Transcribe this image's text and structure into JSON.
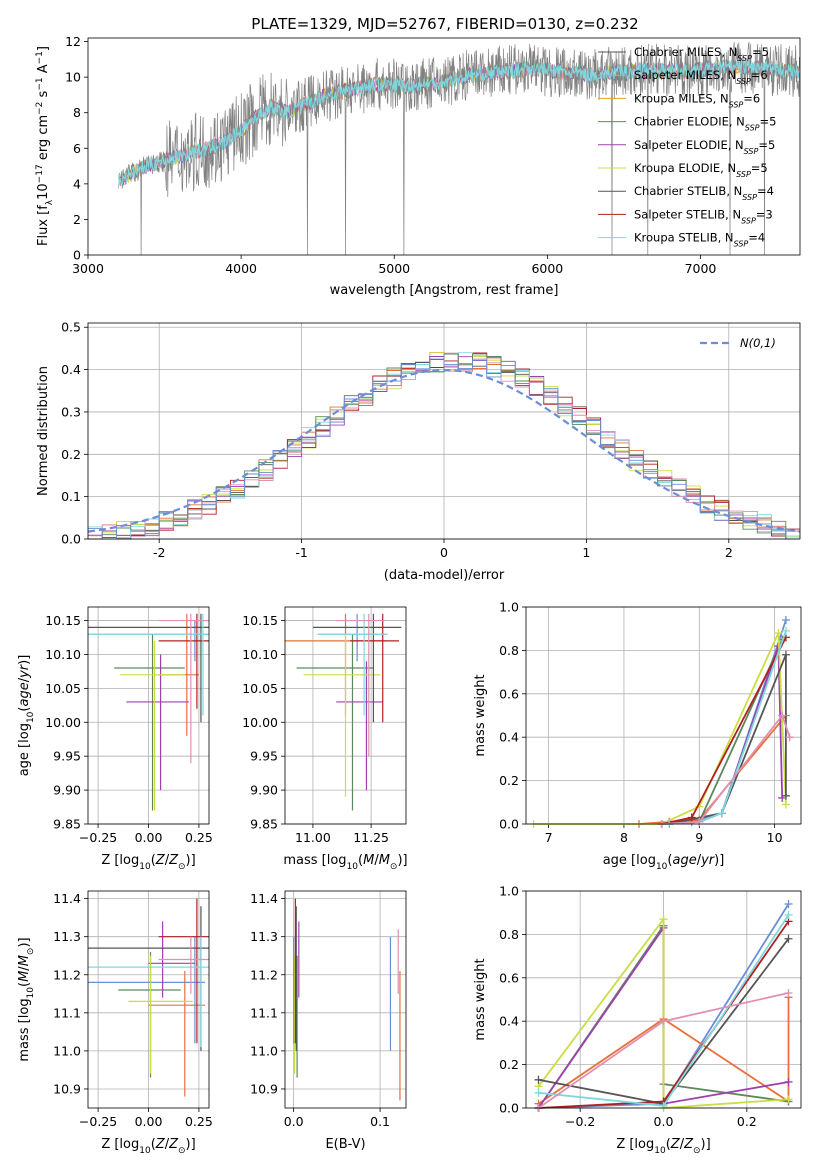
{
  "figure_title": "PLATE=1329, MJD=52767, FIBERID=0130, z=0.232",
  "colors": [
    "#6a8fd8",
    "#e8703a",
    "#5a8a5a",
    "#a040b0",
    "#ccdd44",
    "#555555",
    "#b02020",
    "#7fd8e0",
    "#e090b0",
    "#ffcc66"
  ],
  "series_names": [
    "Chabrier MILES, N_SSP=5",
    "Salpeter MILES, N_SSP=6",
    "Kroupa MILES, N_SSP=6",
    "Chabrier ELODIE, N_SSP=5",
    "Salpeter ELODIE, N_SSP=5",
    "Kroupa ELODIE, N_SSP=5",
    "Chabrier STELIB, N_SSP=4",
    "Salpeter STELIB, N_SSP=3",
    "Kroupa STELIB, N_SSP=4"
  ],
  "chart_data": [
    {
      "id": "spectrum",
      "type": "line",
      "title": "PLATE=1329, MJD=52767, FIBERID=0130, z=0.232",
      "xlabel": "wavelength [Angstrom, rest frame]",
      "ylabel": "Flux [f_λ 10^-17 erg cm^-2 s^-1 A^-1]",
      "xlim": [
        3000,
        7650
      ],
      "ylim": [
        0,
        12.2
      ],
      "xticks": [
        3000,
        4000,
        5000,
        6000,
        7000
      ],
      "yticks": [
        0,
        2,
        4,
        6,
        8,
        10,
        12
      ],
      "grid": false,
      "legend": "top-right",
      "legend_labels": [
        {
          "name": "Chabrier MILES, N",
          "sub": "SSP",
          "tail": "=5",
          "color": "#555555"
        },
        {
          "name": "Salpeter MILES, N",
          "sub": "SSP",
          "tail": "=6",
          "color": "#e090b0"
        },
        {
          "name": "Kroupa MILES, N",
          "sub": "SSP",
          "tail": "=6",
          "color": "#e8a030"
        },
        {
          "name": "Chabrier ELODIE, N",
          "sub": "SSP",
          "tail": "=5",
          "color": "#5a8a5a"
        },
        {
          "name": "Salpeter ELODIE, N",
          "sub": "SSP",
          "tail": "=5",
          "color": "#a040b0"
        },
        {
          "name": "Kroupa ELODIE, N",
          "sub": "SSP",
          "tail": "=5",
          "color": "#ccdd44"
        },
        {
          "name": "Chabrier STELIB, N",
          "sub": "SSP",
          "tail": "=4",
          "color": "#555555"
        },
        {
          "name": "Salpeter STELIB, N",
          "sub": "SSP",
          "tail": "=3",
          "color": "#b02020"
        },
        {
          "name": "Kroupa STELIB, N",
          "sub": "SSP",
          "tail": "=4",
          "color": "#7fd8e0"
        }
      ],
      "data_curve": {
        "x": [
          3200,
          3400,
          3500,
          3700,
          3800,
          3900,
          4000,
          4100,
          4200,
          4300,
          4500,
          4700,
          4900,
          5100,
          5300,
          5500,
          5700,
          5900,
          6100,
          6300,
          6500,
          6700,
          6900,
          7100,
          7300,
          7500,
          7650
        ],
        "y": [
          4.2,
          5.1,
          5.3,
          5.8,
          6.0,
          6.4,
          7.0,
          7.8,
          8.3,
          8.0,
          8.8,
          9.3,
          9.6,
          9.5,
          9.7,
          10.1,
          10.3,
          10.5,
          10.3,
          10.1,
          10.3,
          10.4,
          10.3,
          10.5,
          10.6,
          10.4,
          10.3
        ]
      }
    },
    {
      "id": "residuals",
      "type": "histogram",
      "xlabel": "(data-model)/error",
      "ylabel": "Normed distribution",
      "xlim": [
        -2.5,
        2.5
      ],
      "ylim": [
        0,
        0.51
      ],
      "xticks": [
        -2,
        -1,
        0,
        1,
        2
      ],
      "yticks": [
        0.0,
        0.1,
        0.2,
        0.3,
        0.4,
        0.5
      ],
      "ytick_labels": [
        "0.0",
        "0.1",
        "0.2",
        "0.3",
        "0.4",
        "0.5"
      ],
      "grid": true,
      "legend": "top-right",
      "legend_label": "N(0,1)",
      "bin_width": 0.1
    },
    {
      "id": "age-vs-Z",
      "type": "errorbar",
      "xlabel": "Z [log10(Z/Z⊙)]",
      "ylabel": "age [log10(age/yr)]",
      "xlim": [
        -0.3,
        0.3
      ],
      "ylim": [
        9.85,
        10.17
      ],
      "xticks": [
        -0.25,
        0.0,
        0.25
      ],
      "xtick_labels": [
        "−0.25",
        "0.00",
        "0.25"
      ],
      "yticks": [
        9.85,
        9.9,
        9.95,
        10.0,
        10.05,
        10.1,
        10.15
      ],
      "ytick_labels": [
        "9.85",
        "9.90",
        "9.95",
        "10.00",
        "10.05",
        "10.10",
        "10.15"
      ],
      "points": [
        {
          "x": 0.23,
          "xlo": -0.3,
          "xhi": 0.3,
          "y": 10.13,
          "ylo": 10.09,
          "yhi": 10.15,
          "c": "#6a8fd8"
        },
        {
          "x": 0.19,
          "xlo": 0.05,
          "xhi": 0.25,
          "y": 10.07,
          "ylo": 9.98,
          "yhi": 10.16,
          "c": "#e8703a"
        },
        {
          "x": 0.02,
          "xlo": -0.17,
          "xhi": 0.18,
          "y": 10.08,
          "ylo": 9.87,
          "yhi": 10.13,
          "c": "#5a8a5a"
        },
        {
          "x": 0.06,
          "xlo": -0.11,
          "xhi": 0.2,
          "y": 10.03,
          "ylo": 9.9,
          "yhi": 10.1,
          "c": "#a040b0"
        },
        {
          "x": 0.03,
          "xlo": -0.14,
          "xhi": 0.18,
          "y": 10.07,
          "ylo": 9.87,
          "yhi": 10.12,
          "c": "#ccdd44"
        },
        {
          "x": 0.26,
          "xlo": -0.3,
          "xhi": 0.3,
          "y": 10.14,
          "ylo": 10.0,
          "yhi": 10.16,
          "c": "#555555"
        },
        {
          "x": 0.24,
          "xlo": 0.05,
          "xhi": 0.3,
          "y": 10.12,
          "ylo": 10.02,
          "yhi": 10.16,
          "c": "#b02020"
        },
        {
          "x": 0.27,
          "xlo": -0.3,
          "xhi": 0.3,
          "y": 10.13,
          "ylo": 10.01,
          "yhi": 10.16,
          "c": "#7fd8e0"
        },
        {
          "x": 0.21,
          "xlo": 0.05,
          "xhi": 0.3,
          "y": 10.15,
          "ylo": 9.94,
          "yhi": 10.16,
          "c": "#e090b0"
        }
      ]
    },
    {
      "id": "age-vs-mass",
      "type": "errorbar",
      "xlabel": "mass [log10(M/M⊙)]",
      "ylabel": "",
      "xlim": [
        10.88,
        11.4
      ],
      "ylim": [
        9.85,
        10.17
      ],
      "xticks": [
        11.0,
        11.25
      ],
      "xtick_labels": [
        "11.00",
        "11.25"
      ],
      "yticks": [
        9.85,
        9.9,
        9.95,
        10.0,
        10.05,
        10.1,
        10.15
      ],
      "ytick_labels": [
        "9.85",
        "9.90",
        "9.95",
        "10.00",
        "10.05",
        "10.10",
        "10.15"
      ],
      "points": [
        {
          "x": 11.19,
          "xlo": 11.02,
          "xhi": 11.32,
          "y": 10.13,
          "ylo": 10.09,
          "yhi": 10.16,
          "c": "#6a8fd8"
        },
        {
          "x": 11.14,
          "xlo": 10.88,
          "xhi": 11.31,
          "y": 10.12,
          "ylo": 10.01,
          "yhi": 10.16,
          "c": "#e8703a"
        },
        {
          "x": 11.17,
          "xlo": 10.93,
          "xhi": 11.26,
          "y": 10.08,
          "ylo": 9.87,
          "yhi": 10.13,
          "c": "#5a8a5a"
        },
        {
          "x": 11.23,
          "xlo": 11.1,
          "xhi": 11.3,
          "y": 10.03,
          "ylo": 9.9,
          "yhi": 10.09,
          "c": "#a040b0"
        },
        {
          "x": 11.14,
          "xlo": 10.96,
          "xhi": 11.29,
          "y": 10.07,
          "ylo": 9.89,
          "yhi": 10.13,
          "c": "#ccdd44"
        },
        {
          "x": 11.26,
          "xlo": 11.0,
          "xhi": 11.38,
          "y": 10.14,
          "ylo": 10.0,
          "yhi": 10.16,
          "c": "#555555"
        },
        {
          "x": 11.3,
          "xlo": 11.16,
          "xhi": 11.37,
          "y": 10.12,
          "ylo": 10.0,
          "yhi": 10.16,
          "c": "#b02020"
        },
        {
          "x": 11.22,
          "xlo": 11.02,
          "xhi": 11.32,
          "y": 10.13,
          "ylo": 10.01,
          "yhi": 10.16,
          "c": "#7fd8e0"
        },
        {
          "x": 11.24,
          "xlo": 11.1,
          "xhi": 11.31,
          "y": 10.15,
          "ylo": 9.95,
          "yhi": 10.16,
          "c": "#e090b0"
        }
      ]
    },
    {
      "id": "weight-vs-age",
      "type": "line",
      "xlabel": "age [log10(age/yr)]",
      "ylabel": "mass weight",
      "xlim": [
        6.7,
        10.35
      ],
      "ylim": [
        0,
        1.0
      ],
      "xticks": [
        7,
        8,
        9,
        10
      ],
      "yticks": [
        0,
        0.2,
        0.4,
        0.6,
        0.8,
        1.0
      ],
      "ytick_labels": [
        "0.0",
        "0.2",
        "0.4",
        "0.6",
        "0.8",
        "1.0"
      ],
      "series": [
        {
          "c": "#6a8fd8",
          "x": [
            8.5,
            8.9,
            9.3,
            10.15
          ],
          "y": [
            0.0,
            0.01,
            0.05,
            0.94
          ]
        },
        {
          "c": "#e8703a",
          "x": [
            8.2,
            8.6,
            9.0,
            10.15
          ],
          "y": [
            0.0,
            0.01,
            0.02,
            0.5
          ]
        },
        {
          "c": "#5a8a5a",
          "x": [
            8.6,
            9.0,
            10.1
          ],
          "y": [
            0.0,
            0.01,
            0.85
          ]
        },
        {
          "c": "#a040b0",
          "x": [
            8.5,
            9.0,
            9.3,
            10.05,
            10.1
          ],
          "y": [
            0.0,
            0.01,
            0.05,
            0.82,
            0.12
          ]
        },
        {
          "c": "#ccdd44",
          "x": [
            6.8,
            8.5,
            9.0,
            10.05,
            10.15
          ],
          "y": [
            0.0,
            0.0,
            0.08,
            0.88,
            0.09
          ]
        },
        {
          "c": "#555555",
          "x": [
            8.6,
            9.3,
            10.15,
            10.15
          ],
          "y": [
            0.0,
            0.05,
            0.78,
            0.13
          ]
        },
        {
          "c": "#b02020",
          "x": [
            8.5,
            8.9,
            10.15
          ],
          "y": [
            0.0,
            0.03,
            0.86
          ]
        },
        {
          "c": "#7fd8e0",
          "x": [
            8.6,
            9.0,
            9.3,
            10.15
          ],
          "y": [
            0.0,
            0.01,
            0.05,
            0.89
          ]
        },
        {
          "c": "#e090b0",
          "x": [
            8.5,
            9.0,
            10.1,
            10.2
          ],
          "y": [
            0.0,
            0.01,
            0.5,
            0.4
          ]
        }
      ]
    },
    {
      "id": "mass-vs-Z",
      "type": "errorbar",
      "xlabel": "Z [log10(Z/Z⊙)]",
      "ylabel": "mass [log10(M/M⊙)]",
      "xlim": [
        -0.3,
        0.3
      ],
      "ylim": [
        10.85,
        11.42
      ],
      "xticks": [
        -0.25,
        0.0,
        0.25
      ],
      "xtick_labels": [
        "−0.25",
        "0.00",
        "0.25"
      ],
      "yticks": [
        10.9,
        11.0,
        11.1,
        11.2,
        11.3,
        11.4
      ],
      "ytick_labels": [
        "10.9",
        "11.0",
        "11.1",
        "11.2",
        "11.3",
        "11.4"
      ],
      "points": [
        {
          "x": 0.23,
          "xlo": -0.3,
          "xhi": 0.28,
          "y": 11.18,
          "ylo": 11.02,
          "yhi": 11.3,
          "c": "#6a8fd8"
        },
        {
          "x": 0.18,
          "xlo": 0.0,
          "xhi": 0.28,
          "y": 11.12,
          "ylo": 10.88,
          "yhi": 11.21,
          "c": "#e8703a"
        },
        {
          "x": 0.01,
          "xlo": -0.15,
          "xhi": 0.16,
          "y": 11.16,
          "ylo": 10.93,
          "yhi": 11.26,
          "c": "#5a8a5a"
        },
        {
          "x": 0.07,
          "xlo": 0.0,
          "xhi": 0.23,
          "y": 11.23,
          "ylo": 11.14,
          "yhi": 11.34,
          "c": "#a040b0"
        },
        {
          "x": 0.01,
          "xlo": -0.1,
          "xhi": 0.22,
          "y": 11.13,
          "ylo": 10.94,
          "yhi": 11.25,
          "c": "#ccdd44"
        },
        {
          "x": 0.26,
          "xlo": -0.3,
          "xhi": 0.3,
          "y": 11.27,
          "ylo": 11.0,
          "yhi": 11.38,
          "c": "#555555"
        },
        {
          "x": 0.24,
          "xlo": 0.05,
          "xhi": 0.3,
          "y": 11.3,
          "ylo": 11.02,
          "yhi": 11.4,
          "c": "#b02020"
        },
        {
          "x": 0.26,
          "xlo": -0.3,
          "xhi": 0.3,
          "y": 11.22,
          "ylo": 11.01,
          "yhi": 11.3,
          "c": "#7fd8e0"
        },
        {
          "x": 0.21,
          "xlo": 0.05,
          "xhi": 0.3,
          "y": 11.24,
          "ylo": 11.15,
          "yhi": 11.3,
          "c": "#e090b0"
        }
      ]
    },
    {
      "id": "mass-vs-EBV",
      "type": "errorbar",
      "xlabel": "E(B-V)",
      "ylabel": "",
      "xlim": [
        -0.01,
        0.13
      ],
      "ylim": [
        10.85,
        11.42
      ],
      "xticks": [
        0.0,
        0.1
      ],
      "xtick_labels": [
        "0.0",
        "0.1"
      ],
      "yticks": [
        10.9,
        11.0,
        11.1,
        11.2,
        11.3,
        11.4
      ],
      "ytick_labels": [
        "10.9",
        "11.0",
        "11.1",
        "11.2",
        "11.3",
        "11.4"
      ],
      "points": [
        {
          "x": 0.0,
          "y": 11.18,
          "ylo": 11.02,
          "yhi": 11.3,
          "c": "#6a8fd8"
        },
        {
          "x": 0.123,
          "y": 11.12,
          "ylo": 10.87,
          "yhi": 11.21,
          "c": "#e8703a"
        },
        {
          "x": 0.004,
          "y": 11.16,
          "ylo": 10.93,
          "yhi": 11.25,
          "c": "#5a8a5a"
        },
        {
          "x": 0.006,
          "y": 11.23,
          "ylo": 11.14,
          "yhi": 11.34,
          "c": "#a040b0"
        },
        {
          "x": 0.001,
          "y": 11.13,
          "ylo": 10.94,
          "yhi": 11.25,
          "c": "#ccdd44"
        },
        {
          "x": 0.003,
          "y": 11.27,
          "ylo": 11.0,
          "yhi": 11.38,
          "c": "#555555"
        },
        {
          "x": 0.002,
          "y": 11.3,
          "ylo": 11.02,
          "yhi": 11.4,
          "c": "#b02020"
        },
        {
          "x": 0.112,
          "y": 11.22,
          "ylo": 11.0,
          "yhi": 11.3,
          "c": "#6a8fd8"
        },
        {
          "x": 0.121,
          "y": 11.24,
          "ylo": 11.15,
          "yhi": 11.32,
          "c": "#e090b0"
        }
      ]
    },
    {
      "id": "weight-vs-Z",
      "type": "line",
      "xlabel": "Z [log10(Z/Z⊙)]",
      "ylabel": "mass weight",
      "xlim": [
        -0.33,
        0.33
      ],
      "ylim": [
        0,
        1.0
      ],
      "xticks": [
        -0.2,
        0.0,
        0.2
      ],
      "xtick_labels": [
        "−0.2",
        "0.0",
        "0.2"
      ],
      "yticks": [
        0,
        0.2,
        0.4,
        0.6,
        0.8,
        1.0
      ],
      "ytick_labels": [
        "0.0",
        "0.2",
        "0.4",
        "0.6",
        "0.8",
        "1.0"
      ],
      "series": [
        {
          "c": "#6a8fd8",
          "x": [
            -0.3,
            0.0,
            0.3
          ],
          "y": [
            0.0,
            0.02,
            0.94
          ]
        },
        {
          "c": "#e8703a",
          "x": [
            -0.3,
            0.0,
            0.3,
            0.3
          ],
          "y": [
            0.02,
            0.41,
            0.03,
            0.51
          ]
        },
        {
          "c": "#5a8a5a",
          "x": [
            -0.3,
            0.0,
            0.0,
            0.3
          ],
          "y": [
            0.0,
            0.84,
            0.11,
            0.03
          ]
        },
        {
          "c": "#a040b0",
          "x": [
            -0.3,
            0.0,
            0.0,
            0.3
          ],
          "y": [
            0.0,
            0.83,
            0.02,
            0.12
          ]
        },
        {
          "c": "#ccdd44",
          "x": [
            -0.3,
            0.0,
            0.0,
            0.3
          ],
          "y": [
            0.1,
            0.87,
            0.0,
            0.04
          ]
        },
        {
          "c": "#555555",
          "x": [
            -0.3,
            0.0,
            0.3
          ],
          "y": [
            0.13,
            0.02,
            0.78
          ]
        },
        {
          "c": "#b02020",
          "x": [
            -0.3,
            0.0,
            0.3
          ],
          "y": [
            0.0,
            0.03,
            0.86
          ]
        },
        {
          "c": "#7fd8e0",
          "x": [
            -0.3,
            0.0,
            0.3
          ],
          "y": [
            0.07,
            0.01,
            0.89
          ]
        },
        {
          "c": "#e090b0",
          "x": [
            -0.3,
            0.0,
            0.3
          ],
          "y": [
            0.0,
            0.4,
            0.53
          ]
        }
      ]
    }
  ]
}
